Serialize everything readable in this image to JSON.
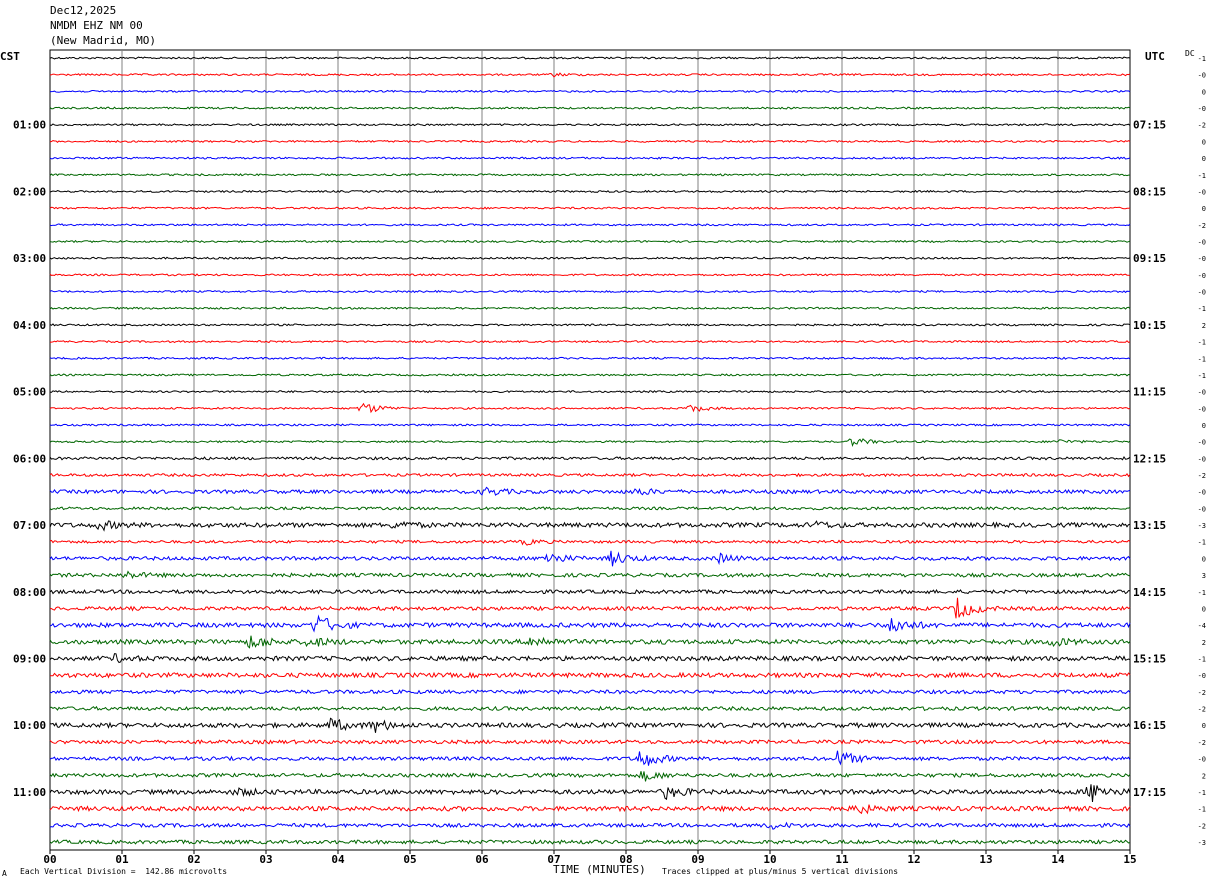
{
  "header": {
    "date": "Dec12,2025",
    "station": "NMDM EHZ NM 00",
    "location": "(New Madrid, MO)"
  },
  "left_timezone": "CST",
  "right_timezone": "UTC",
  "dc_label": "DC",
  "colors": {
    "traces": [
      "#000000",
      "#ff0000",
      "#0000ff",
      "#006600"
    ],
    "grid": "#808080",
    "background": "#ffffff"
  },
  "footer": {
    "scale_note": "Each Vertical Division =  142.86 microvolts",
    "clip_note": "Traces clipped at plus/minus 5 vertical divisions",
    "small_mark": "A"
  },
  "chart_data": {
    "type": "helicorder",
    "xlabel": "TIME (MINUTES)",
    "x_ticks": [
      "00",
      "01",
      "02",
      "03",
      "04",
      "05",
      "06",
      "07",
      "08",
      "09",
      "10",
      "11",
      "12",
      "13",
      "14",
      "15"
    ],
    "xlim": [
      0,
      15
    ],
    "trace_count": 48,
    "minutes_per_trace": 15,
    "left_hour_labels": [
      {
        "trace": 4,
        "label": "01:00"
      },
      {
        "trace": 8,
        "label": "02:00"
      },
      {
        "trace": 12,
        "label": "03:00"
      },
      {
        "trace": 16,
        "label": "04:00"
      },
      {
        "trace": 20,
        "label": "05:00"
      },
      {
        "trace": 24,
        "label": "06:00"
      },
      {
        "trace": 28,
        "label": "07:00"
      },
      {
        "trace": 32,
        "label": "08:00"
      },
      {
        "trace": 36,
        "label": "09:00"
      },
      {
        "trace": 40,
        "label": "10:00"
      },
      {
        "trace": 44,
        "label": "11:00"
      }
    ],
    "right_hour_labels": [
      {
        "trace": 4,
        "label": "07:15"
      },
      {
        "trace": 8,
        "label": "08:15"
      },
      {
        "trace": 12,
        "label": "09:15"
      },
      {
        "trace": 16,
        "label": "10:15"
      },
      {
        "trace": 20,
        "label": "11:15"
      },
      {
        "trace": 24,
        "label": "12:15"
      },
      {
        "trace": 28,
        "label": "13:15"
      },
      {
        "trace": 32,
        "label": "14:15"
      },
      {
        "trace": 36,
        "label": "15:15"
      },
      {
        "trace": 40,
        "label": "16:15"
      },
      {
        "trace": 44,
        "label": "17:15"
      }
    ],
    "dc_offsets": [
      "-1",
      "-0",
      "0",
      "-0",
      "-2",
      "0",
      "0",
      "-1",
      "-0",
      "0",
      "-2",
      "-0",
      "-0",
      "-0",
      "-0",
      "-1",
      "2",
      "-1",
      "-1",
      "-1",
      "-0",
      "-0",
      "0",
      "-0",
      "-0",
      "-2",
      "-0",
      "-0",
      "-3",
      "-1",
      "0",
      "3",
      "-1",
      "0",
      "-4",
      "2",
      "-1",
      "-0",
      "-2",
      "-2",
      "0",
      "-2",
      "-0",
      "2",
      "-1",
      "-1",
      "-2",
      "-3"
    ],
    "noise_levels": [
      1,
      1,
      1,
      1,
      1,
      1,
      1,
      1,
      1,
      1,
      1,
      1,
      1,
      1,
      1,
      1,
      1,
      1,
      1,
      1,
      1,
      1,
      1,
      1,
      1.5,
      1.5,
      2,
      1.5,
      2.5,
      1.5,
      2,
      2,
      2,
      2,
      2.5,
      2.5,
      2.5,
      2.5,
      2,
      2,
      2.5,
      2,
      2,
      2,
      2.5,
      2.5,
      2,
      2
    ],
    "events": [
      {
        "trace": 1,
        "minute": 7.0,
        "amp": 1.5
      },
      {
        "trace": 21,
        "minute": 4.35,
        "amp": 6
      },
      {
        "trace": 21,
        "minute": 8.9,
        "amp": 3.5
      },
      {
        "trace": 23,
        "minute": 11.15,
        "amp": 4
      },
      {
        "trace": 23,
        "minute": 14.0,
        "amp": 2
      },
      {
        "trace": 26,
        "minute": 6.05,
        "amp": 4
      },
      {
        "trace": 26,
        "minute": 8.15,
        "amp": 3
      },
      {
        "trace": 28,
        "minute": 0.7,
        "amp": 4
      },
      {
        "trace": 28,
        "minute": 4.8,
        "amp": 3.5
      },
      {
        "trace": 28,
        "minute": 10.6,
        "amp": 3
      },
      {
        "trace": 29,
        "minute": 6.6,
        "amp": 2.5
      },
      {
        "trace": 30,
        "minute": 6.9,
        "amp": 6
      },
      {
        "trace": 30,
        "minute": 7.8,
        "amp": 7
      },
      {
        "trace": 30,
        "minute": 9.3,
        "amp": 4
      },
      {
        "trace": 31,
        "minute": 1.05,
        "amp": 3
      },
      {
        "trace": 33,
        "minute": 12.6,
        "amp": 11
      },
      {
        "trace": 34,
        "minute": 3.7,
        "amp": 10
      },
      {
        "trace": 34,
        "minute": 11.7,
        "amp": 8
      },
      {
        "trace": 35,
        "minute": 2.8,
        "amp": 7
      },
      {
        "trace": 35,
        "minute": 3.6,
        "amp": 5
      },
      {
        "trace": 35,
        "minute": 6.7,
        "amp": 6
      },
      {
        "trace": 35,
        "minute": 13.9,
        "amp": 4
      },
      {
        "trace": 36,
        "minute": 0.9,
        "amp": 3
      },
      {
        "trace": 40,
        "minute": 3.9,
        "amp": 6
      },
      {
        "trace": 40,
        "minute": 4.5,
        "amp": 6
      },
      {
        "trace": 42,
        "minute": 8.2,
        "amp": 10
      },
      {
        "trace": 42,
        "minute": 10.95,
        "amp": 8
      },
      {
        "trace": 43,
        "minute": 8.25,
        "amp": 5
      },
      {
        "trace": 44,
        "minute": 8.55,
        "amp": 6
      },
      {
        "trace": 44,
        "minute": 14.45,
        "amp": 10
      },
      {
        "trace": 44,
        "minute": 2.6,
        "amp": 3
      },
      {
        "trace": 45,
        "minute": 11.2,
        "amp": 5
      },
      {
        "trace": 46,
        "minute": 10.0,
        "amp": 3
      }
    ]
  }
}
